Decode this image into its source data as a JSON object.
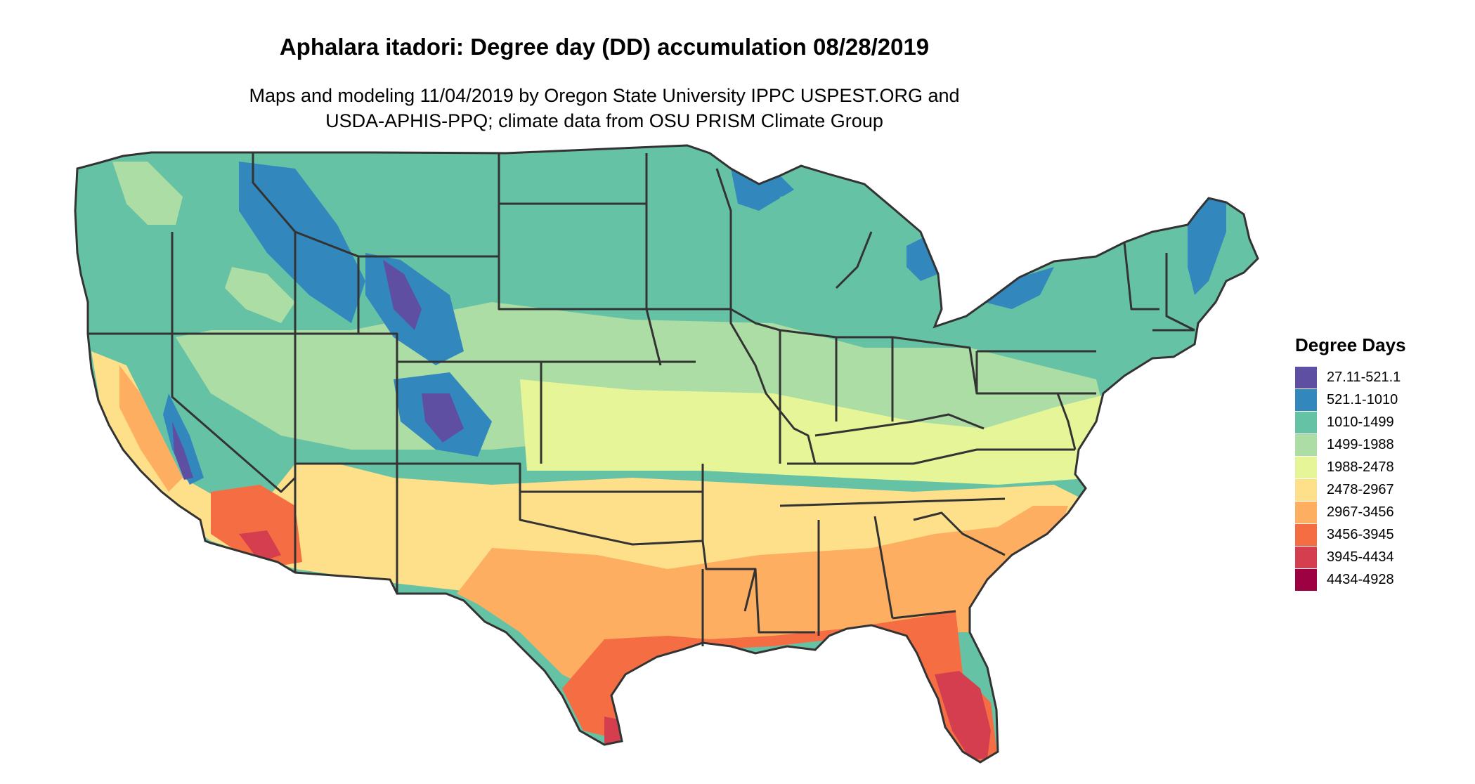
{
  "title": "Aphalara itadori: Degree day (DD) accumulation 08/28/2019",
  "subtitle_line1": "Maps and modeling 11/04/2019 by Oregon State University IPPC USPEST.ORG and",
  "subtitle_line2": "USDA-APHIS-PPQ; climate data from OSU PRISM Climate Group",
  "legend": {
    "title": "Degree Days",
    "items": [
      {
        "label": "27.11-521.1",
        "color": "#5e4fa2"
      },
      {
        "label": "521.1-1010",
        "color": "#3288bd"
      },
      {
        "label": "1010-1499",
        "color": "#66c2a5"
      },
      {
        "label": "1499-1988",
        "color": "#abdda4"
      },
      {
        "label": "1988-2478",
        "color": "#e6f598"
      },
      {
        "label": "2478-2967",
        "color": "#fee08b"
      },
      {
        "label": "2967-3456",
        "color": "#fdae61"
      },
      {
        "label": "3456-3945",
        "color": "#f46d43"
      },
      {
        "label": "3945-4434",
        "color": "#d53e4f"
      },
      {
        "label": "4434-4928",
        "color": "#9e0142"
      }
    ]
  }
}
